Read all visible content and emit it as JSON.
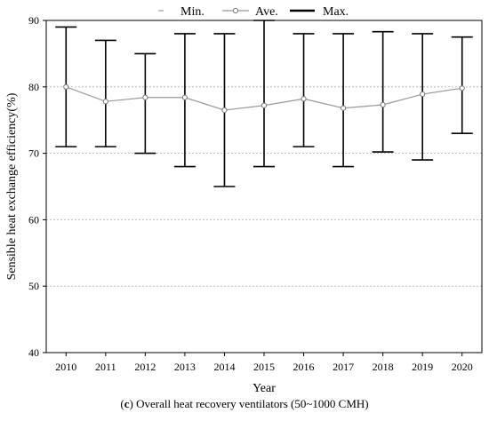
{
  "chart_data": {
    "type": "line",
    "xlabel": "Year",
    "ylabel": "Sensible heat exchange efficiency(%)",
    "ylim": [
      40,
      90
    ],
    "yticks": [
      40,
      50,
      60,
      70,
      80,
      90
    ],
    "categories": [
      "2010",
      "2011",
      "2012",
      "2013",
      "2014",
      "2015",
      "2016",
      "2017",
      "2018",
      "2019",
      "2020"
    ],
    "grid": "horizontal dashed",
    "legend_position": "top",
    "legend": [
      {
        "key": "min",
        "label": "Min."
      },
      {
        "key": "ave",
        "label": "Ave."
      },
      {
        "key": "max",
        "label": "Max."
      }
    ],
    "series": [
      {
        "name": "Min.",
        "values": [
          71,
          71,
          70,
          68,
          65,
          68,
          71,
          68,
          70.2,
          69,
          73
        ]
      },
      {
        "name": "Ave.",
        "values": [
          80,
          77.8,
          78.4,
          78.4,
          76.5,
          77.2,
          78.2,
          76.8,
          77.3,
          78.9,
          79.8
        ]
      },
      {
        "name": "Max.",
        "values": [
          89,
          87,
          85,
          88,
          88,
          90,
          88,
          88,
          88.3,
          88,
          87.5
        ]
      }
    ],
    "colors": {
      "axis": "#000000",
      "line": "#999999",
      "grid": "#b0b0b0",
      "bar": "#000000"
    }
  },
  "caption": {
    "label": "c",
    "text": " Overall heat recovery ventilators (50~1000 CMH)"
  }
}
